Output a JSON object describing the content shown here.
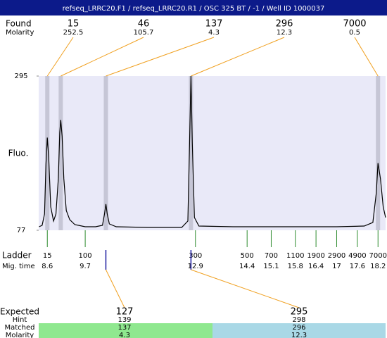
{
  "header": {
    "title": "refseq_LRRC20.F1 / refseq_LRRC20.R1 / OSC 325 BT / -1 / Well ID 1000037"
  },
  "chart_data": {
    "type": "line",
    "y_label": "Fluo.",
    "ylim": [
      77,
      295
    ],
    "yticks": [
      77,
      295
    ],
    "xlim": [
      8.35,
      18.42
    ],
    "x": [
      8.36,
      8.45,
      8.52,
      8.56,
      8.6,
      8.64,
      8.7,
      8.78,
      8.85,
      8.92,
      8.96,
      8.99,
      9.03,
      9.08,
      9.15,
      9.25,
      9.4,
      9.7,
      10.0,
      10.2,
      10.26,
      10.3,
      10.34,
      10.4,
      10.6,
      11.5,
      12.5,
      12.68,
      12.73,
      12.77,
      12.81,
      12.87,
      13.0,
      14,
      15,
      16,
      17,
      17.8,
      18.05,
      18.15,
      18.2,
      18.27,
      18.35,
      18.42
    ],
    "series": [
      {
        "color": "#000000",
        "values": [
          82,
          84,
          100,
          170,
          208,
          180,
          110,
          90,
          100,
          150,
          215,
          233,
          210,
          150,
          105,
          92,
          85,
          82,
          82,
          84,
          100,
          114,
          100,
          86,
          82,
          81,
          81,
          90,
          200,
          295,
          200,
          95,
          83,
          82,
          82,
          82,
          82,
          83,
          88,
          130,
          172,
          150,
          110,
          95
        ]
      }
    ],
    "found": {
      "label": "Found",
      "molarity_label": "Molarity",
      "sizes": [
        15,
        46,
        137,
        296,
        7000
      ],
      "molarity": [
        252.5,
        105.7,
        4.3,
        12.3,
        0.5
      ],
      "peak_x": [
        8.6,
        8.99,
        10.3,
        12.77,
        18.2
      ]
    },
    "ladder": {
      "label": "Ladder",
      "time_label": "Mig. time",
      "sizes": [
        15,
        100,
        300,
        500,
        700,
        1100,
        1900,
        2900,
        4900,
        7000
      ],
      "times": [
        8.6,
        9.7,
        12.9,
        14.4,
        15.1,
        15.8,
        16.4,
        17,
        17.6,
        18.2
      ]
    },
    "expected": {
      "label": "Expected",
      "hint_label": "Hint",
      "matched_label": "Matched",
      "molarity_label": "Molarity",
      "sizes": [
        127,
        295
      ],
      "hint": [
        139,
        298
      ],
      "matched": [
        137,
        296
      ],
      "molarity": [
        4.3,
        12.3
      ]
    }
  }
}
